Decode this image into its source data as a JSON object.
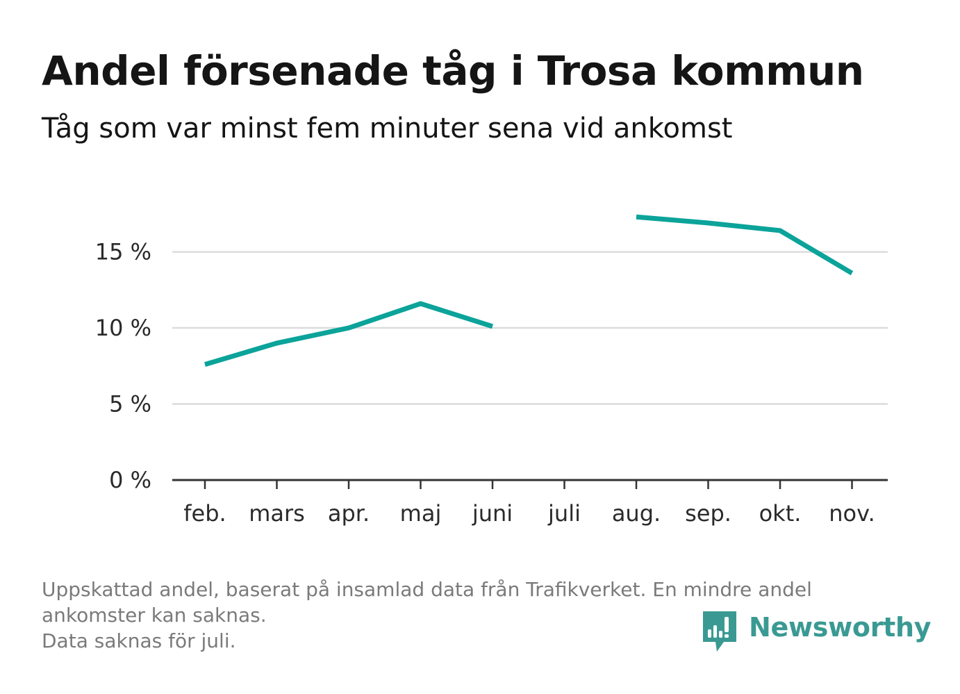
{
  "header": {
    "title": "Andel försenade tåg i Trosa kommun",
    "subtitle": "Tåg som var minst fem minuter sena vid ankomst"
  },
  "footnote": {
    "line1": "Uppskattad andel, baserat på insamlad data från Trafikverket. En mindre andel",
    "line2": "ankomster kan saknas.",
    "line3": "Data saknas för juli."
  },
  "brand": {
    "name": "Newsworthy",
    "icon": "newsworthy-logo-icon",
    "color": "#3a9a93"
  },
  "chart_data": {
    "type": "line",
    "categories": [
      "feb.",
      "mars",
      "apr.",
      "maj",
      "juni",
      "juli",
      "aug.",
      "sep.",
      "okt.",
      "nov."
    ],
    "series": [
      {
        "values": [
          7.6,
          9.0,
          10.0,
          11.6,
          10.1,
          null,
          17.3,
          16.9,
          16.4,
          13.6
        ],
        "color": "#0ba39a"
      }
    ],
    "yticks": [
      {
        "value": 0,
        "label": "0 %"
      },
      {
        "value": 5,
        "label": "5 %"
      },
      {
        "value": 10,
        "label": "10 %"
      },
      {
        "value": 15,
        "label": "15 %"
      }
    ],
    "ylim": [
      0,
      19.0
    ],
    "grid": true,
    "xlabel": "",
    "ylabel": ""
  }
}
